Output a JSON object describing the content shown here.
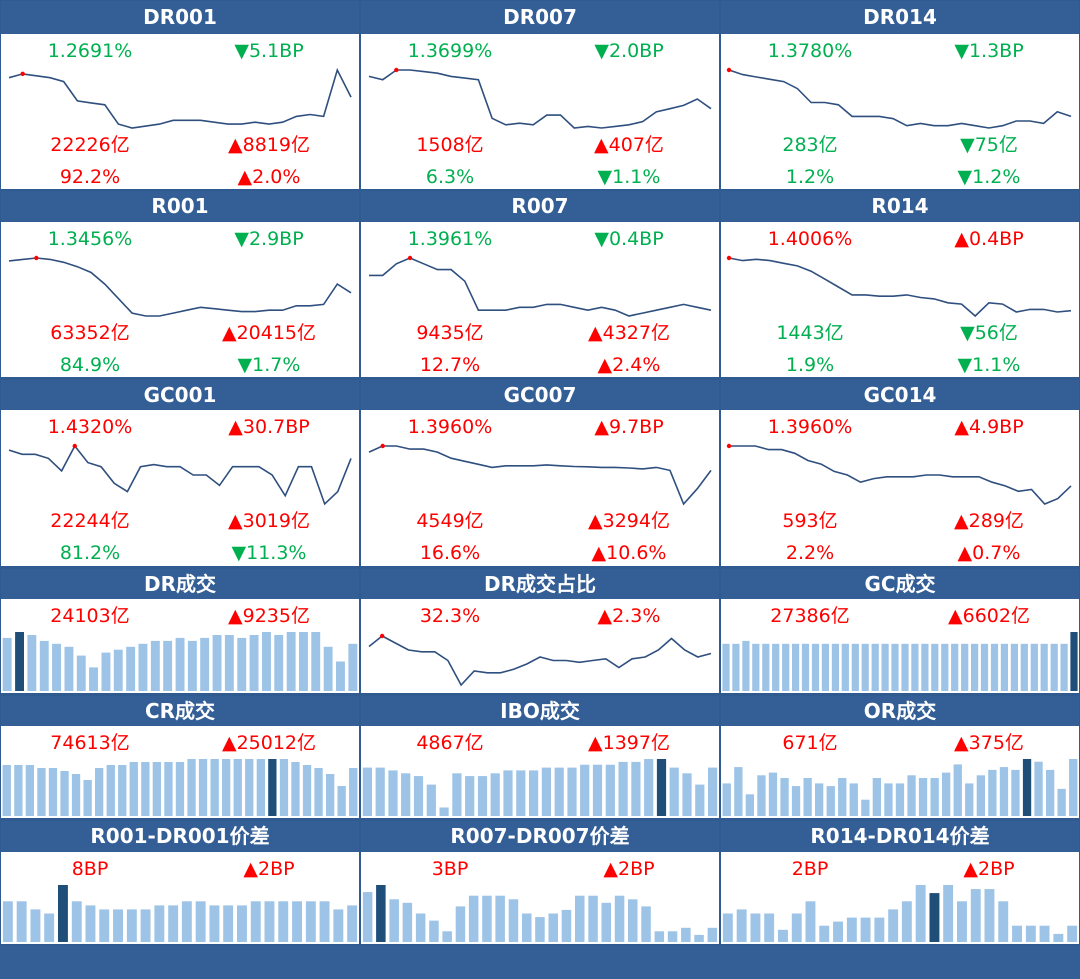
{
  "colors": {
    "header": "#335e96",
    "up": "#ff0000",
    "down": "#00b050",
    "line": "#2f4f7f",
    "bar": "#9dc3e6",
    "bar_highlight": "#1f4e79",
    "marker": "#ff0000"
  },
  "rows": [
    {
      "kind": "line",
      "panels": [
        {
          "title": "DR001",
          "t1": "1.2691%",
          "c1": "dn",
          "t2": "▼5.1BP",
          "c2": "dn",
          "t3": "22226亿",
          "c3": "up",
          "t4": "▲8819亿",
          "c4": "up",
          "t5": "92.2%",
          "c5": "up",
          "t6": "▲2.0%",
          "c6": "up"
        },
        {
          "title": "DR007",
          "t1": "1.3699%",
          "c1": "dn",
          "t2": "▼2.0BP",
          "c2": "dn",
          "t3": "1508亿",
          "c3": "up",
          "t4": "▲407亿",
          "c4": "up",
          "t5": "6.3%",
          "c5": "dn",
          "t6": "▼1.1%",
          "c6": "dn"
        },
        {
          "title": "DR014",
          "t1": "1.3780%",
          "c1": "dn",
          "t2": "▼1.3BP",
          "c2": "dn",
          "t3": "283亿",
          "c3": "dn",
          "t4": "▼75亿",
          "c4": "dn",
          "t5": "1.2%",
          "c5": "dn",
          "t6": "▼1.2%",
          "c6": "dn"
        }
      ]
    },
    {
      "kind": "line",
      "panels": [
        {
          "title": "R001",
          "t1": "1.3456%",
          "c1": "dn",
          "t2": "▼2.9BP",
          "c2": "dn",
          "t3": "63352亿",
          "c3": "up",
          "t4": "▲20415亿",
          "c4": "up",
          "t5": "84.9%",
          "c5": "dn",
          "t6": "▼1.7%",
          "c6": "dn"
        },
        {
          "title": "R007",
          "t1": "1.3961%",
          "c1": "dn",
          "t2": "▼0.4BP",
          "c2": "dn",
          "t3": "9435亿",
          "c3": "up",
          "t4": "▲4327亿",
          "c4": "up",
          "t5": "12.7%",
          "c5": "up",
          "t6": "▲2.4%",
          "c6": "up"
        },
        {
          "title": "R014",
          "t1": "1.4006%",
          "c1": "up",
          "t2": "▲0.4BP",
          "c2": "up",
          "t3": "1443亿",
          "c3": "dn",
          "t4": "▼56亿",
          "c4": "dn",
          "t5": "1.9%",
          "c5": "dn",
          "t6": "▼1.1%",
          "c6": "dn"
        }
      ]
    },
    {
      "kind": "line",
      "panels": [
        {
          "title": "GC001",
          "t1": "1.4320%",
          "c1": "up",
          "t2": "▲30.7BP",
          "c2": "up",
          "t3": "22244亿",
          "c3": "up",
          "t4": "▲3019亿",
          "c4": "up",
          "t5": "81.2%",
          "c5": "dn",
          "t6": "▼11.3%",
          "c6": "dn"
        },
        {
          "title": "GC007",
          "t1": "1.3960%",
          "c1": "up",
          "t2": "▲9.7BP",
          "c2": "up",
          "t3": "4549亿",
          "c3": "up",
          "t4": "▲3294亿",
          "c4": "up",
          "t5": "16.6%",
          "c5": "up",
          "t6": "▲10.6%",
          "c6": "up"
        },
        {
          "title": "GC014",
          "t1": "1.3960%",
          "c1": "up",
          "t2": "▲4.9BP",
          "c2": "up",
          "t3": "593亿",
          "c3": "up",
          "t4": "▲289亿",
          "c4": "up",
          "t5": "2.2%",
          "c5": "up",
          "t6": "▲0.7%",
          "c6": "up"
        }
      ]
    },
    {
      "kind": "small",
      "panels": [
        {
          "title": "DR成交",
          "t1": "24103亿",
          "c1": "up",
          "t2": "▲9235亿",
          "c2": "up",
          "plot": "bar"
        },
        {
          "title": "DR成交占比",
          "t1": "32.3%",
          "c1": "up",
          "t2": "▲2.3%",
          "c2": "up",
          "plot": "line"
        },
        {
          "title": "GC成交",
          "t1": "27386亿",
          "c1": "up",
          "t2": "▲6602亿",
          "c2": "up",
          "plot": "bar"
        }
      ]
    },
    {
      "kind": "small",
      "panels": [
        {
          "title": "CR成交",
          "t1": "74613亿",
          "c1": "up",
          "t2": "▲25012亿",
          "c2": "up",
          "plot": "bar"
        },
        {
          "title": "IBO成交",
          "t1": "4867亿",
          "c1": "up",
          "t2": "▲1397亿",
          "c2": "up",
          "plot": "bar"
        },
        {
          "title": "OR成交",
          "t1": "671亿",
          "c1": "up",
          "t2": "▲375亿",
          "c2": "up",
          "plot": "bar"
        }
      ]
    },
    {
      "kind": "small",
      "panels": [
        {
          "title": "R001-DR001价差",
          "t1": "8BP",
          "c1": "up",
          "t2": "▲2BP",
          "c2": "up",
          "plot": "bar"
        },
        {
          "title": "R007-DR007价差",
          "t1": "3BP",
          "c1": "up",
          "t2": "▲2BP",
          "c2": "up",
          "plot": "bar"
        },
        {
          "title": "R014-DR014价差",
          "t1": "2BP",
          "c1": "up",
          "t2": "▲2BP",
          "c2": "up",
          "plot": "bar"
        }
      ]
    }
  ],
  "chart_data": [
    {
      "type": "line",
      "panel": "DR001",
      "values": [
        1.3,
        1.31,
        1.305,
        1.3,
        1.29,
        1.24,
        1.235,
        1.23,
        1.18,
        1.17,
        1.175,
        1.18,
        1.19,
        1.19,
        1.19,
        1.185,
        1.18,
        1.18,
        1.185,
        1.18,
        1.185,
        1.2,
        1.205,
        1.2,
        1.32,
        1.25
      ],
      "highlight_index": 1
    },
    {
      "type": "line",
      "panel": "DR007",
      "values": [
        1.36,
        1.35,
        1.38,
        1.38,
        1.375,
        1.37,
        1.36,
        1.355,
        1.35,
        1.23,
        1.21,
        1.215,
        1.21,
        1.24,
        1.24,
        1.2,
        1.205,
        1.2,
        1.205,
        1.21,
        1.22,
        1.25,
        1.26,
        1.27,
        1.29,
        1.26
      ],
      "highlight_index": 2
    },
    {
      "type": "line",
      "panel": "DR014",
      "values": [
        1.4,
        1.39,
        1.385,
        1.38,
        1.375,
        1.36,
        1.33,
        1.33,
        1.325,
        1.3,
        1.3,
        1.3,
        1.295,
        1.28,
        1.285,
        1.28,
        1.28,
        1.285,
        1.28,
        1.275,
        1.28,
        1.29,
        1.29,
        1.285,
        1.31,
        1.3
      ],
      "highlight_index": 0
    },
    {
      "type": "line",
      "panel": "R001",
      "values": [
        1.38,
        1.385,
        1.39,
        1.385,
        1.375,
        1.36,
        1.34,
        1.3,
        1.25,
        1.2,
        1.19,
        1.19,
        1.2,
        1.21,
        1.22,
        1.215,
        1.21,
        1.205,
        1.205,
        1.21,
        1.21,
        1.225,
        1.225,
        1.23,
        1.3,
        1.27
      ],
      "highlight_index": 2
    },
    {
      "type": "line",
      "panel": "R007",
      "values": [
        1.38,
        1.38,
        1.4,
        1.41,
        1.4,
        1.39,
        1.39,
        1.37,
        1.32,
        1.32,
        1.32,
        1.325,
        1.325,
        1.33,
        1.33,
        1.325,
        1.32,
        1.325,
        1.32,
        1.31,
        1.315,
        1.32,
        1.325,
        1.33,
        1.325,
        1.32
      ],
      "highlight_index": 3
    },
    {
      "type": "line",
      "panel": "R014",
      "values": [
        1.44,
        1.43,
        1.435,
        1.43,
        1.42,
        1.41,
        1.39,
        1.36,
        1.33,
        1.3,
        1.3,
        1.295,
        1.295,
        1.3,
        1.29,
        1.285,
        1.27,
        1.265,
        1.22,
        1.27,
        1.265,
        1.235,
        1.245,
        1.245,
        1.235,
        1.24
      ],
      "highlight_index": 0
    },
    {
      "type": "line",
      "panel": "GC001",
      "values": [
        1.42,
        1.41,
        1.41,
        1.4,
        1.37,
        1.43,
        1.39,
        1.38,
        1.34,
        1.32,
        1.38,
        1.385,
        1.38,
        1.38,
        1.36,
        1.36,
        1.335,
        1.38,
        1.38,
        1.38,
        1.36,
        1.31,
        1.38,
        1.38,
        1.29,
        1.32,
        1.4
      ],
      "highlight_index": 5
    },
    {
      "type": "line",
      "panel": "GC007",
      "values": [
        1.42,
        1.44,
        1.44,
        1.43,
        1.43,
        1.42,
        1.4,
        1.39,
        1.38,
        1.37,
        1.375,
        1.375,
        1.375,
        1.378,
        1.375,
        1.373,
        1.372,
        1.37,
        1.37,
        1.368,
        1.365,
        1.37,
        1.36,
        1.25,
        1.3,
        1.36
      ],
      "highlight_index": 1
    },
    {
      "type": "line",
      "panel": "GC014",
      "values": [
        1.41,
        1.41,
        1.41,
        1.4,
        1.4,
        1.39,
        1.37,
        1.36,
        1.34,
        1.33,
        1.31,
        1.32,
        1.325,
        1.325,
        1.325,
        1.33,
        1.33,
        1.325,
        1.325,
        1.325,
        1.31,
        1.3,
        1.285,
        1.29,
        1.25,
        1.265,
        1.3
      ],
      "highlight_index": 0
    },
    {
      "type": "bar",
      "panel": "DR成交",
      "values": [
        18,
        20,
        19,
        17,
        16,
        15,
        12,
        8,
        13,
        14,
        15,
        16,
        17,
        17,
        18,
        17,
        18,
        19,
        19,
        18,
        19,
        20,
        19,
        20,
        20,
        20,
        15,
        10,
        16
      ],
      "highlight_index": 1
    },
    {
      "type": "line",
      "panel": "DR成交占比",
      "values": [
        30,
        33,
        31,
        29,
        28.5,
        28.5,
        26,
        19,
        23,
        22.5,
        22.5,
        23.5,
        25,
        27,
        26,
        26,
        25.5,
        26,
        26.5,
        24,
        26.5,
        27,
        29,
        32.3,
        29,
        27,
        28
      ],
      "highlight_index": 1
    },
    {
      "type": "bar",
      "panel": "GC成交",
      "values": [
        16,
        16,
        17,
        16,
        16,
        16,
        16,
        16,
        16,
        16,
        16,
        16,
        16,
        16,
        16,
        16,
        16,
        16,
        16,
        16,
        16,
        16,
        16,
        16,
        16,
        16,
        16,
        16,
        16,
        16,
        16,
        16,
        16,
        16,
        16,
        20
      ],
      "highlight_index": 35
    },
    {
      "type": "bar",
      "panel": "CR成交",
      "values": [
        17,
        17,
        17,
        16,
        16,
        15,
        14,
        12,
        16,
        17,
        17,
        18,
        18,
        18,
        18,
        18,
        19,
        19,
        19,
        19,
        19,
        19,
        19,
        19,
        19,
        18,
        17,
        16,
        14,
        10,
        16
      ],
      "highlight_index": 23
    },
    {
      "type": "bar",
      "panel": "IBO成交",
      "values": [
        17,
        17,
        16,
        15,
        14,
        11,
        3,
        15,
        14,
        14,
        15,
        16,
        16,
        16,
        17,
        17,
        17,
        18,
        18,
        18,
        19,
        19,
        20,
        20,
        17,
        15,
        11,
        17
      ],
      "highlight_index": 23
    },
    {
      "type": "bar",
      "panel": "OR成交",
      "values": [
        12,
        18,
        8,
        15,
        16,
        14,
        11,
        14,
        12,
        11,
        14,
        12,
        6,
        14,
        12,
        12,
        15,
        14,
        14,
        16,
        19,
        12,
        15,
        17,
        18,
        17,
        21,
        20,
        17,
        10,
        21
      ],
      "highlight_index": 26
    },
    {
      "type": "bar",
      "panel": "R001-DR001价差",
      "values": [
        10,
        10,
        8,
        7,
        14,
        10,
        9,
        8,
        8,
        8,
        8,
        9,
        9,
        10,
        10,
        9,
        9,
        9,
        10,
        10,
        10,
        10,
        10,
        10,
        8,
        9
      ],
      "highlight_index": 4
    },
    {
      "type": "bar",
      "panel": "R007-DR007价差",
      "values": [
        14,
        16,
        12,
        11,
        8,
        6,
        3,
        10,
        13,
        13,
        13,
        12,
        8,
        7,
        8,
        9,
        13,
        13,
        11,
        13,
        12,
        10,
        3,
        3,
        4,
        2,
        4
      ],
      "highlight_index": 1
    },
    {
      "type": "bar",
      "panel": "R014-DR014价差",
      "values": [
        7,
        8,
        7,
        7,
        3,
        7,
        10,
        4,
        5,
        6,
        6,
        6,
        8,
        10,
        14,
        12,
        14,
        10,
        13,
        13,
        10,
        4,
        4,
        4,
        2,
        4
      ],
      "highlight_index": 15
    }
  ]
}
